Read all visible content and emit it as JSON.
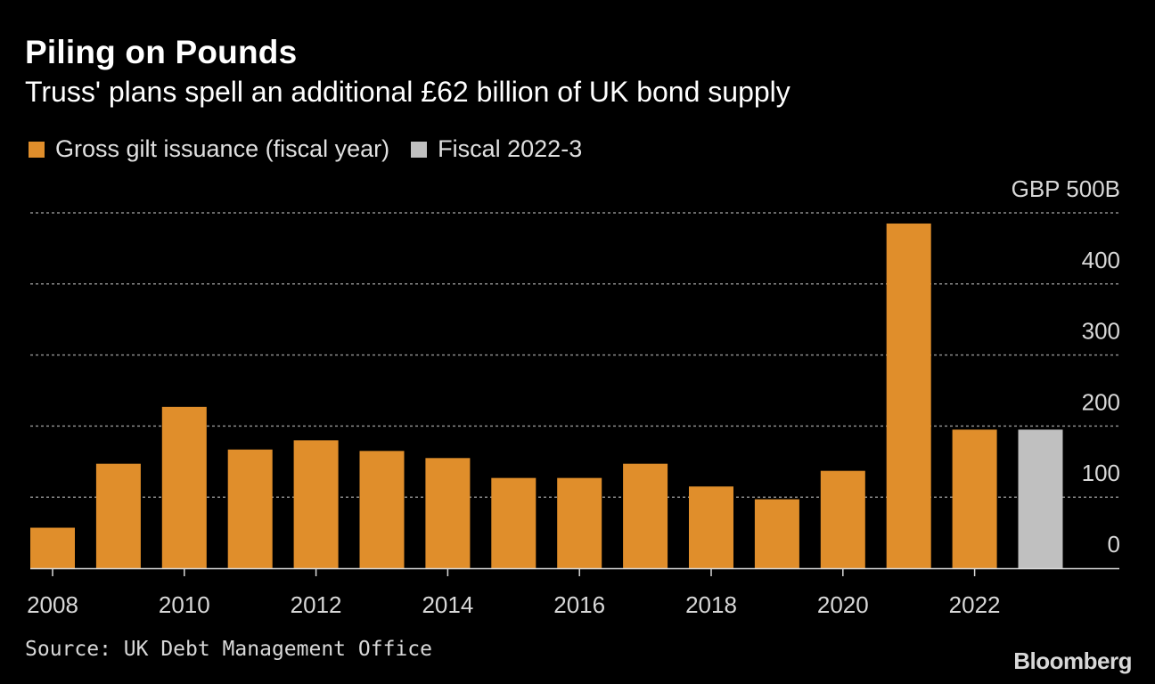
{
  "title": "Piling on Pounds",
  "subtitle": "Truss' plans spell an additional £62 billion of UK bond supply",
  "legend": [
    {
      "label": "Gross gilt issuance (fiscal year)",
      "color": "#e08e2b"
    },
    {
      "label": "Fiscal 2022-3",
      "color": "#c0c0c0"
    }
  ],
  "source": "Source: UK Debt Management Office",
  "logo": "Bloomberg",
  "chart_data": {
    "type": "bar",
    "categories": [
      "2008",
      "2009",
      "2010",
      "2011",
      "2012",
      "2013",
      "2014",
      "2015",
      "2016",
      "2017",
      "2018",
      "2019",
      "2020",
      "2021",
      "2022",
      "2022-3"
    ],
    "series": [
      {
        "name": "Gross gilt issuance (fiscal year)",
        "color": "#e08e2b",
        "values": [
          57,
          147,
          227,
          167,
          180,
          165,
          155,
          127,
          127,
          147,
          115,
          97,
          137,
          485,
          195,
          null
        ]
      },
      {
        "name": "Fiscal 2022-3",
        "color": "#c0c0c0",
        "values": [
          null,
          null,
          null,
          null,
          null,
          null,
          null,
          null,
          null,
          null,
          null,
          null,
          null,
          null,
          null,
          195
        ]
      }
    ],
    "x_tick_labels": [
      "2008",
      "2010",
      "2012",
      "2014",
      "2016",
      "2018",
      "2020",
      "2022"
    ],
    "y_ticks": [
      0,
      100,
      200,
      300,
      400,
      500
    ],
    "y_tick_labels": [
      "0",
      "100",
      "200",
      "300",
      "400",
      "GBP 500B"
    ],
    "ylim": [
      0,
      500
    ],
    "grid": true,
    "legend_position": "top-left",
    "xlabel": "",
    "ylabel": ""
  }
}
